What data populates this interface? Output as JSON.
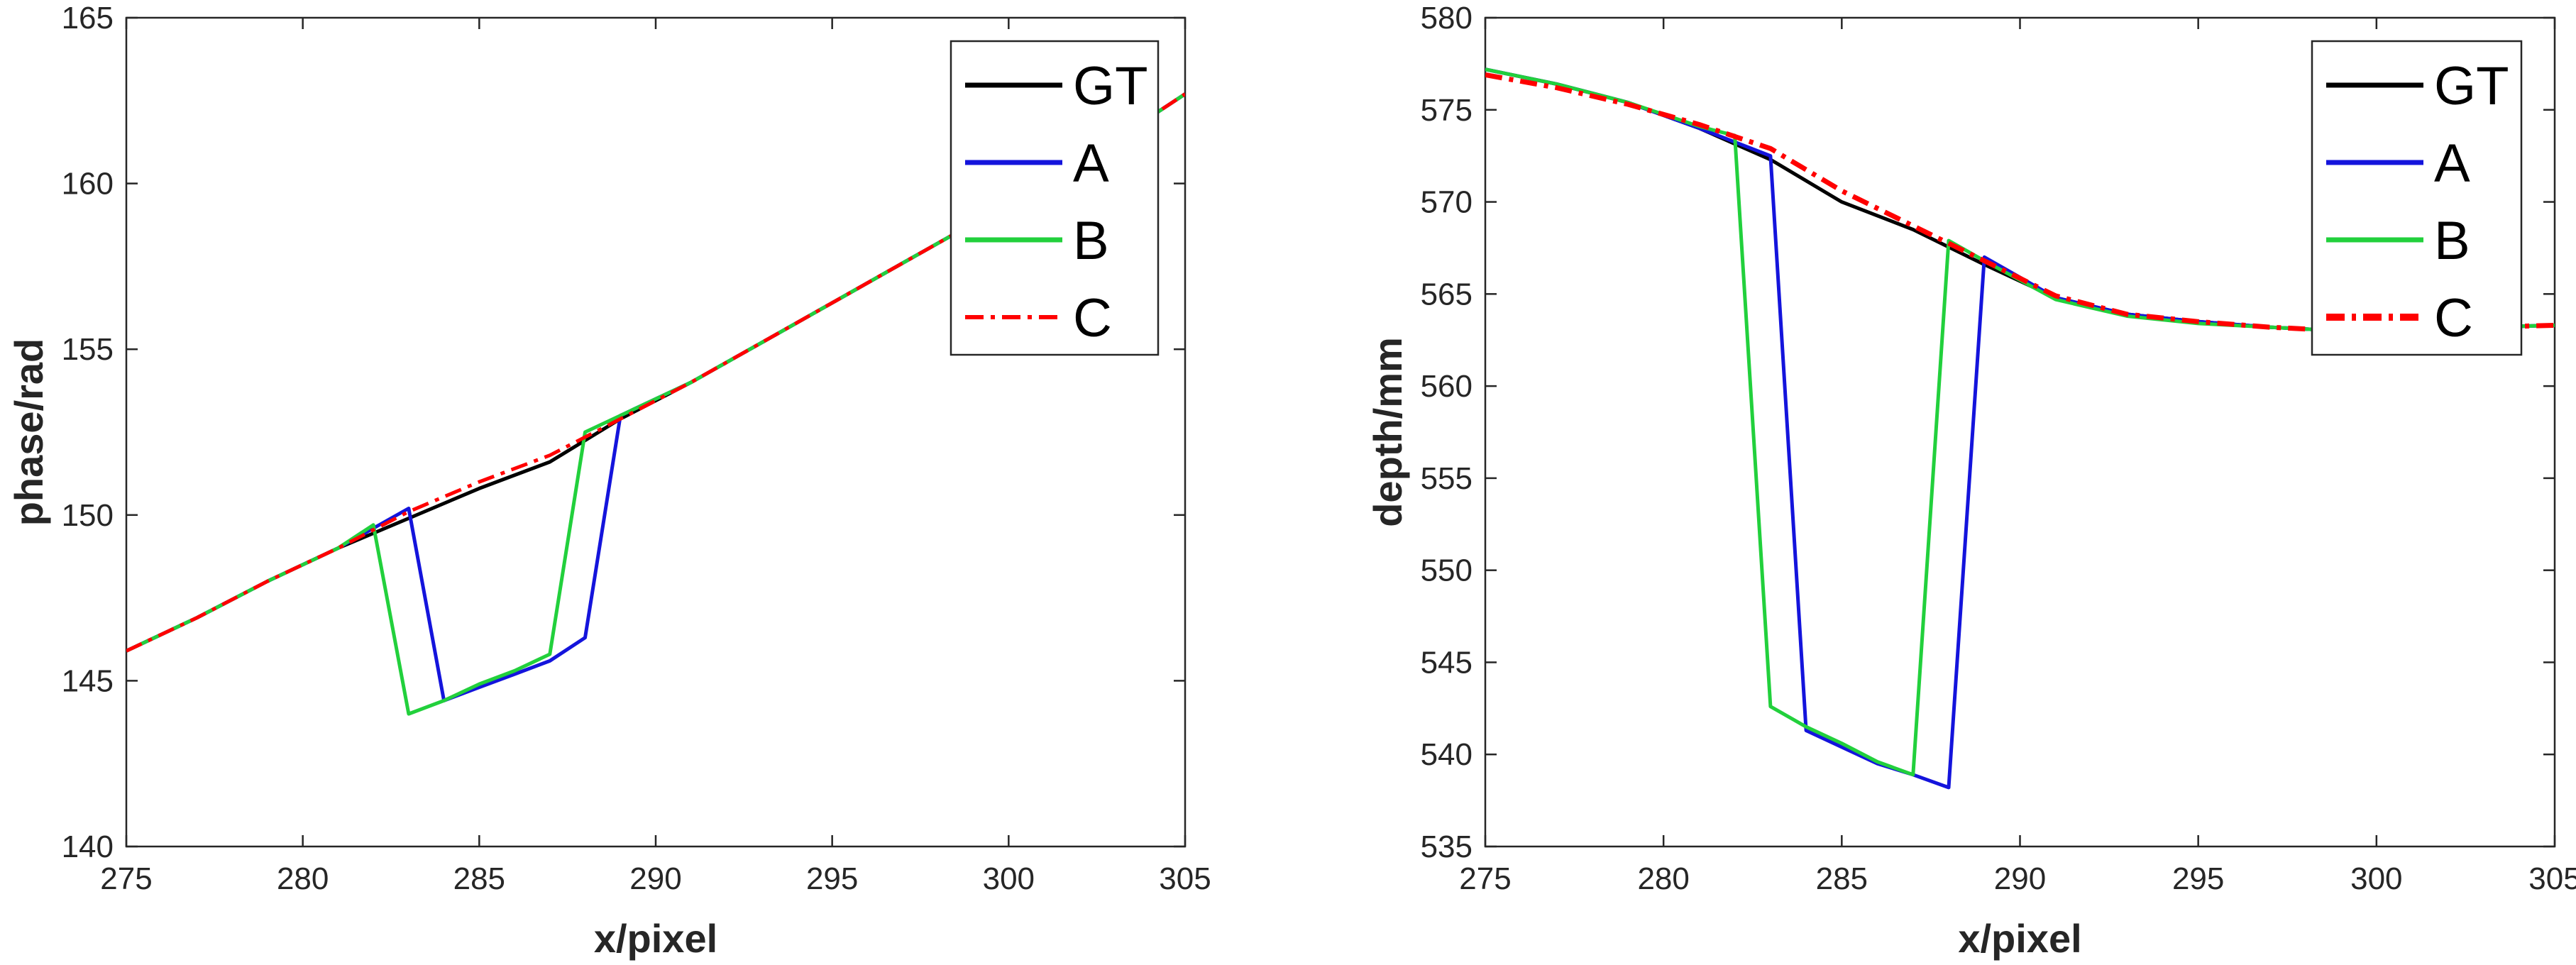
{
  "chart_data": [
    {
      "type": "line",
      "title": "",
      "xlabel": "x/pixel",
      "ylabel": "phase/rad",
      "xlim": [
        275,
        305
      ],
      "ylim": [
        140,
        165
      ],
      "xticks": [
        275,
        280,
        285,
        290,
        295,
        300,
        305
      ],
      "yticks": [
        140,
        145,
        150,
        155,
        160,
        165
      ],
      "grid": false,
      "legend_position": "top-right",
      "series": [
        {
          "name": "GT",
          "color": "#000000",
          "style": "solid",
          "x": [
            275,
            277,
            279,
            281,
            283,
            285,
            287,
            289,
            291,
            293,
            295,
            297,
            299,
            301,
            303,
            305
          ],
          "y": [
            145.9,
            146.9,
            148.0,
            149.0,
            149.9,
            150.8,
            151.6,
            152.9,
            154.0,
            155.2,
            156.4,
            157.6,
            158.8,
            160.0,
            161.3,
            162.7
          ]
        },
        {
          "name": "A",
          "color": "#1414dc",
          "style": "solid",
          "x": [
            275,
            277,
            279,
            281,
            282,
            283,
            284,
            285,
            286,
            287,
            288,
            289,
            291,
            293,
            295,
            297,
            299,
            301,
            303,
            305
          ],
          "y": [
            145.9,
            146.9,
            148.0,
            149.0,
            149.6,
            150.2,
            144.4,
            144.8,
            145.2,
            145.6,
            146.3,
            153.0,
            154.0,
            155.2,
            156.4,
            157.6,
            158.8,
            160.0,
            161.3,
            162.7
          ]
        },
        {
          "name": "B",
          "color": "#22d03c",
          "style": "solid",
          "x": [
            275,
            277,
            279,
            281,
            282,
            283,
            284,
            285,
            286,
            287,
            288,
            289,
            291,
            293,
            295,
            297,
            299,
            301,
            303,
            305
          ],
          "y": [
            145.9,
            146.9,
            148.0,
            149.0,
            149.7,
            144.0,
            144.4,
            144.9,
            145.3,
            145.8,
            152.5,
            153.0,
            154.0,
            155.2,
            156.4,
            157.6,
            158.8,
            160.0,
            161.3,
            162.7
          ]
        },
        {
          "name": "C",
          "color": "#ff0000",
          "style": "dashdot",
          "x": [
            275,
            277,
            279,
            281,
            283,
            285,
            287,
            289,
            291,
            293,
            295,
            297,
            299,
            301,
            303,
            305
          ],
          "y": [
            145.9,
            146.9,
            148.0,
            149.0,
            150.1,
            151.0,
            151.8,
            152.9,
            154.0,
            155.2,
            156.4,
            157.6,
            158.8,
            160.0,
            161.3,
            162.7
          ]
        }
      ]
    },
    {
      "type": "line",
      "title": "",
      "xlabel": "x/pixel",
      "ylabel": "depth/mm",
      "xlim": [
        275,
        305
      ],
      "ylim": [
        535,
        580
      ],
      "xticks": [
        275,
        280,
        285,
        290,
        295,
        300,
        305
      ],
      "yticks": [
        535,
        540,
        545,
        550,
        555,
        560,
        565,
        570,
        575,
        580
      ],
      "grid": false,
      "legend_position": "top-right",
      "series": [
        {
          "name": "GT",
          "color": "#000000",
          "style": "solid",
          "x": [
            275,
            277,
            279,
            281,
            283,
            285,
            287,
            289,
            291,
            293,
            295,
            297,
            299,
            301,
            303,
            305
          ],
          "y": [
            577.2,
            576.4,
            575.4,
            574.0,
            572.3,
            570.0,
            568.5,
            566.6,
            564.8,
            563.9,
            563.5,
            563.2,
            563.0,
            563.1,
            563.2,
            563.3
          ]
        },
        {
          "name": "A",
          "color": "#1414dc",
          "style": "solid",
          "x": [
            275,
            277,
            279,
            281,
            283,
            284,
            285,
            286,
            287,
            288,
            289,
            291,
            293,
            295,
            297,
            299,
            301,
            303,
            305
          ],
          "y": [
            577.2,
            576.4,
            575.4,
            574.0,
            572.5,
            541.3,
            540.4,
            539.5,
            538.9,
            538.2,
            567.0,
            564.8,
            563.9,
            563.5,
            563.2,
            563.0,
            563.1,
            563.2,
            563.3
          ]
        },
        {
          "name": "B",
          "color": "#22d03c",
          "style": "solid",
          "x": [
            275,
            277,
            279,
            281,
            282,
            283,
            284,
            285,
            286,
            287,
            288,
            289,
            291,
            293,
            295,
            297,
            299,
            301,
            303,
            305
          ],
          "y": [
            577.2,
            576.4,
            575.4,
            574.1,
            573.6,
            542.6,
            541.5,
            540.6,
            539.6,
            538.9,
            567.9,
            566.8,
            564.7,
            563.8,
            563.4,
            563.2,
            563.0,
            563.1,
            563.2,
            563.3
          ]
        },
        {
          "name": "C",
          "color": "#ff0000",
          "style": "dashdot",
          "x": [
            275,
            277,
            279,
            281,
            283,
            285,
            287,
            289,
            291,
            293,
            295,
            297,
            299,
            301,
            303,
            305
          ],
          "y": [
            576.9,
            576.2,
            575.3,
            574.2,
            572.9,
            570.6,
            568.7,
            566.8,
            564.9,
            563.9,
            563.5,
            563.2,
            563.0,
            563.1,
            563.2,
            563.3
          ]
        }
      ]
    }
  ]
}
